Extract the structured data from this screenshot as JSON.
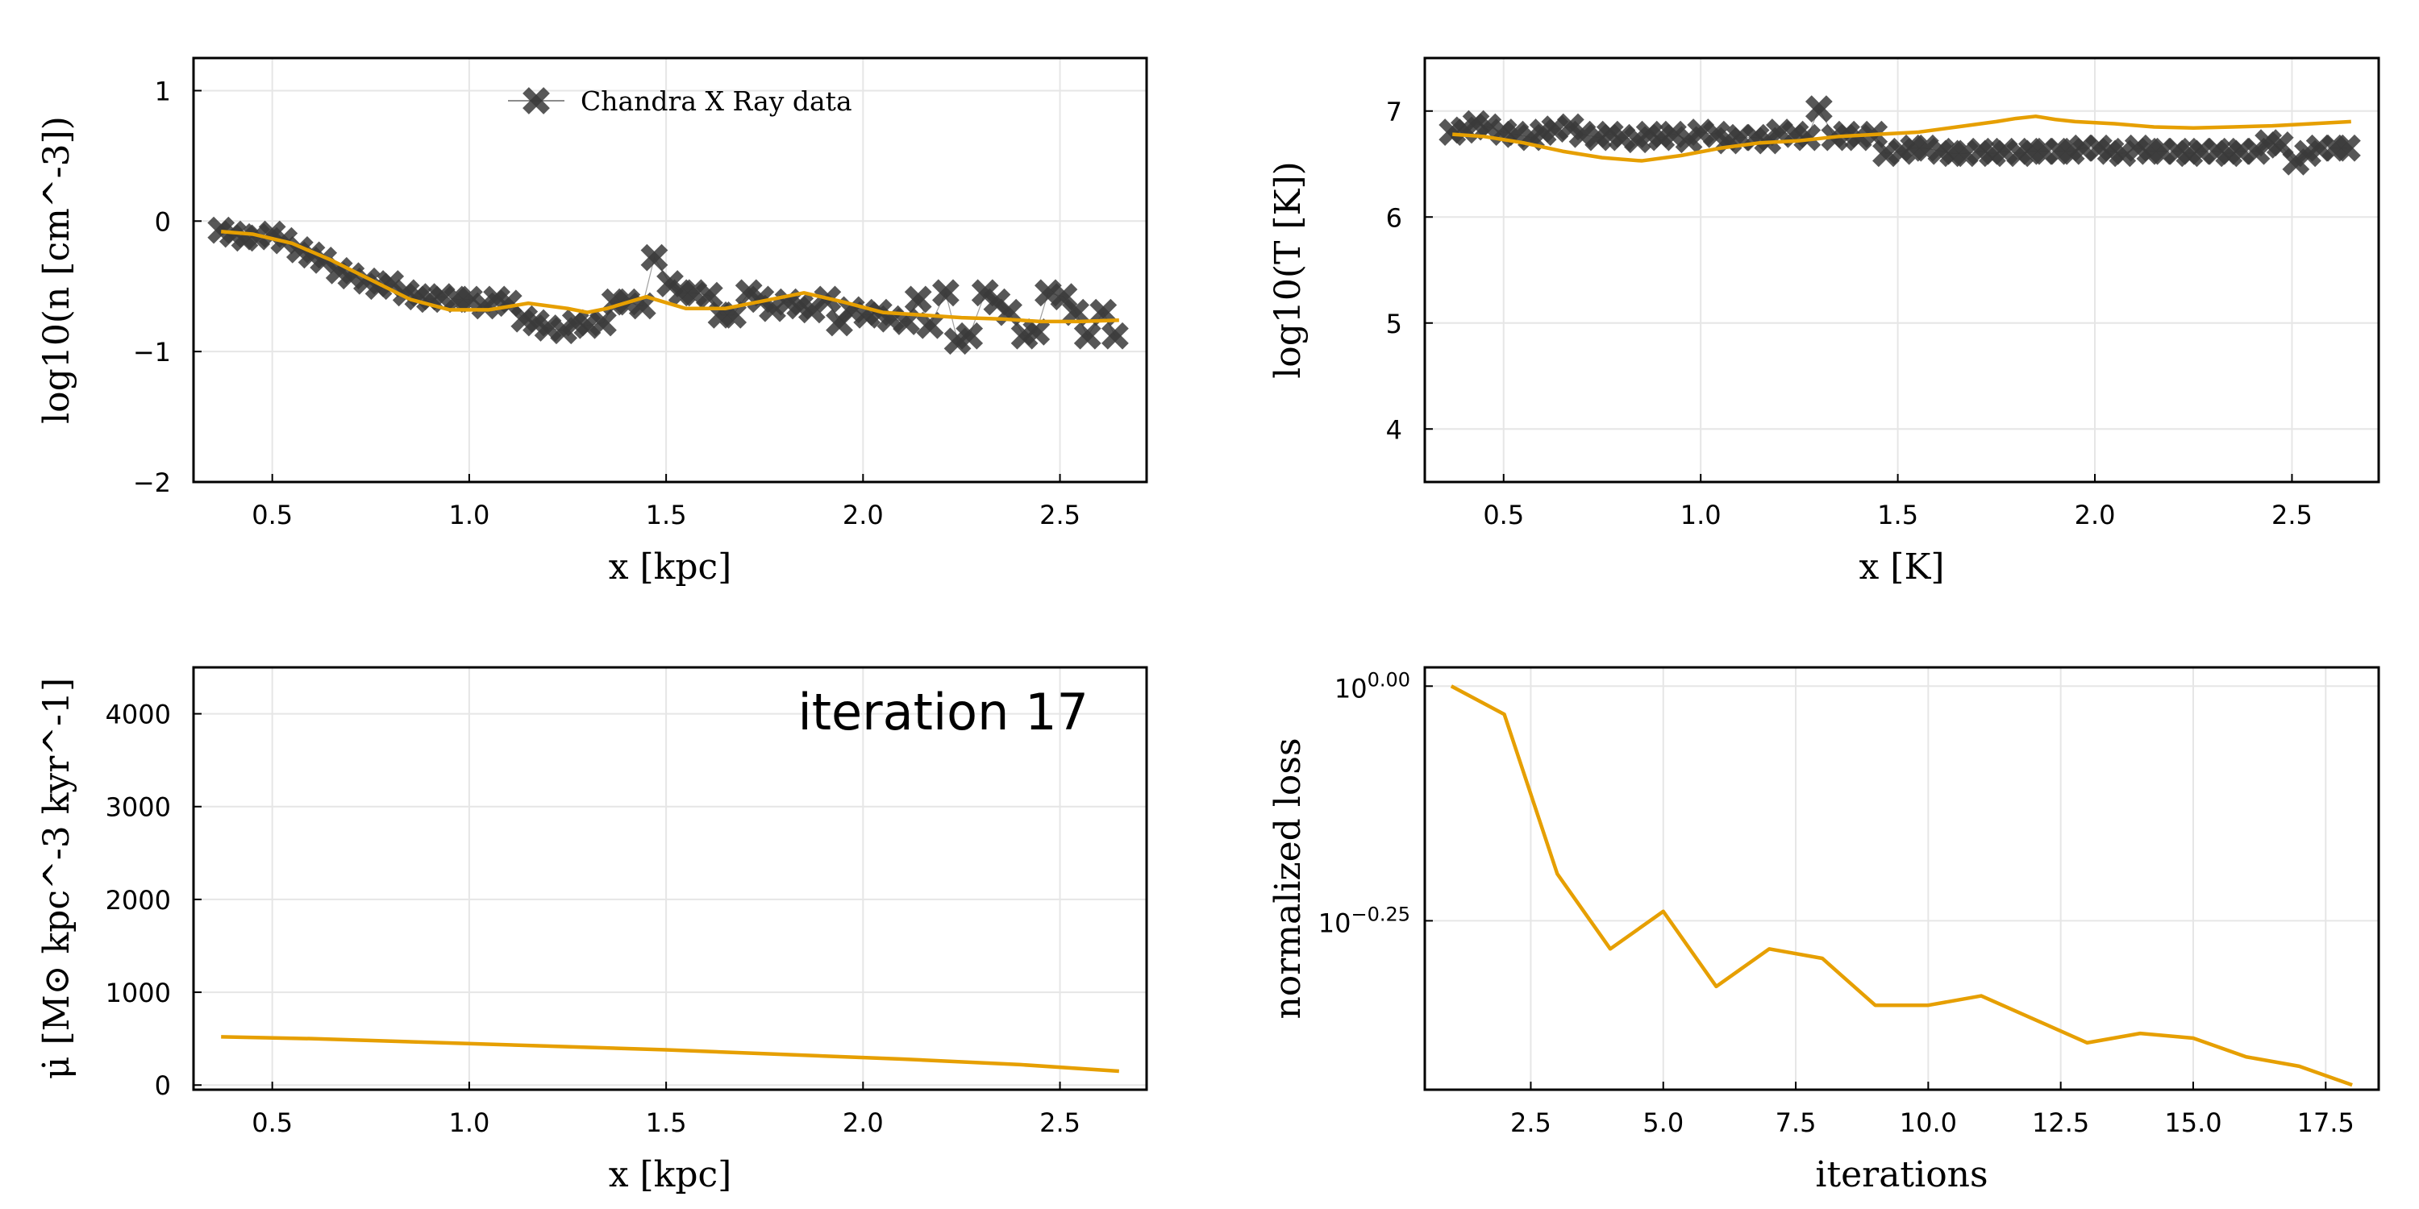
{
  "chart_data": [
    {
      "type": "scatter+line",
      "xlabel": "x [kpc]",
      "ylabel": "log10(n [cm^-3])",
      "xlim": [
        0.3,
        2.72
      ],
      "ylim": [
        -2,
        1.25
      ],
      "xticks": [
        "0.5",
        "1.0",
        "1.5",
        "2.0",
        "2.5"
      ],
      "yticks": [
        "−2",
        "−1",
        "0",
        "1"
      ],
      "grid": true,
      "legend": {
        "placement": "top-center",
        "entries": [
          "Chandra X Ray data"
        ]
      },
      "series": [
        {
          "name": "Chandra X Ray data",
          "style": "x-markers",
          "x": [
            0.37,
            0.4,
            0.43,
            0.46,
            0.5,
            0.53,
            0.57,
            0.6,
            0.63,
            0.67,
            0.7,
            0.74,
            0.77,
            0.8,
            0.84,
            0.87,
            0.9,
            0.93,
            0.97,
            1.0,
            1.04,
            1.07,
            1.1,
            1.14,
            1.17,
            1.2,
            1.24,
            1.27,
            1.3,
            1.34,
            1.37,
            1.4,
            1.44,
            1.47,
            1.51,
            1.54,
            1.57,
            1.61,
            1.64,
            1.67,
            1.71,
            1.74,
            1.77,
            1.81,
            1.84,
            1.87,
            1.91,
            1.94,
            1.97,
            2.01,
            2.04,
            2.07,
            2.11,
            2.14,
            2.17,
            2.21,
            2.24,
            2.27,
            2.31,
            2.34,
            2.37,
            2.41,
            2.44,
            2.47,
            2.51,
            2.54,
            2.57,
            2.61,
            2.64
          ],
          "values": [
            -0.07,
            -0.1,
            -0.13,
            -0.12,
            -0.1,
            -0.15,
            -0.22,
            -0.26,
            -0.3,
            -0.38,
            -0.42,
            -0.46,
            -0.5,
            -0.48,
            -0.55,
            -0.58,
            -0.6,
            -0.58,
            -0.6,
            -0.6,
            -0.65,
            -0.6,
            -0.63,
            -0.75,
            -0.78,
            -0.82,
            -0.84,
            -0.78,
            -0.8,
            -0.78,
            -0.62,
            -0.62,
            -0.65,
            -0.28,
            -0.48,
            -0.55,
            -0.55,
            -0.57,
            -0.72,
            -0.72,
            -0.55,
            -0.6,
            -0.67,
            -0.62,
            -0.65,
            -0.68,
            -0.6,
            -0.78,
            -0.68,
            -0.72,
            -0.7,
            -0.75,
            -0.77,
            -0.6,
            -0.8,
            -0.55,
            -0.92,
            -0.88,
            -0.55,
            -0.62,
            -0.7,
            -0.88,
            -0.85,
            -0.55,
            -0.58,
            -0.7,
            -0.88,
            -0.7,
            -0.88
          ]
        },
        {
          "style": "line",
          "x": [
            0.37,
            0.45,
            0.55,
            0.65,
            0.75,
            0.85,
            0.95,
            1.05,
            1.15,
            1.25,
            1.3,
            1.35,
            1.45,
            1.55,
            1.65,
            1.75,
            1.85,
            1.95,
            2.05,
            2.15,
            2.25,
            2.35,
            2.45,
            2.55,
            2.65
          ],
          "values": [
            -0.08,
            -0.1,
            -0.17,
            -0.3,
            -0.45,
            -0.6,
            -0.68,
            -0.68,
            -0.63,
            -0.67,
            -0.7,
            -0.67,
            -0.58,
            -0.67,
            -0.67,
            -0.61,
            -0.55,
            -0.62,
            -0.7,
            -0.72,
            -0.74,
            -0.75,
            -0.77,
            -0.77,
            -0.76
          ]
        }
      ]
    },
    {
      "type": "scatter+line",
      "xlabel": "x [K]",
      "ylabel": "log10(T [K])",
      "xlim": [
        0.3,
        2.72
      ],
      "ylim": [
        3.5,
        7.5
      ],
      "xticks": [
        "0.5",
        "1.0",
        "1.5",
        "2.0",
        "2.5"
      ],
      "yticks": [
        "4",
        "5",
        "6",
        "7"
      ],
      "grid": true,
      "series": [
        {
          "style": "x-markers",
          "x": [
            0.37,
            0.4,
            0.43,
            0.46,
            0.5,
            0.53,
            0.57,
            0.6,
            0.63,
            0.67,
            0.7,
            0.74,
            0.77,
            0.8,
            0.84,
            0.87,
            0.9,
            0.93,
            0.97,
            1.0,
            1.04,
            1.07,
            1.1,
            1.14,
            1.17,
            1.2,
            1.24,
            1.27,
            1.3,
            1.34,
            1.37,
            1.4,
            1.44,
            1.47,
            1.51,
            1.54,
            1.57,
            1.61,
            1.64,
            1.67,
            1.71,
            1.74,
            1.77,
            1.81,
            1.84,
            1.87,
            1.91,
            1.94,
            1.97,
            2.01,
            2.04,
            2.07,
            2.11,
            2.14,
            2.17,
            2.21,
            2.24,
            2.27,
            2.31,
            2.34,
            2.37,
            2.41,
            2.44,
            2.47,
            2.51,
            2.54,
            2.57,
            2.61,
            2.64
          ],
          "values": [
            6.8,
            6.82,
            6.88,
            6.85,
            6.8,
            6.78,
            6.75,
            6.8,
            6.83,
            6.85,
            6.78,
            6.75,
            6.78,
            6.75,
            6.73,
            6.78,
            6.75,
            6.78,
            6.73,
            6.8,
            6.78,
            6.72,
            6.75,
            6.75,
            6.72,
            6.8,
            6.78,
            6.75,
            7.02,
            6.75,
            6.78,
            6.75,
            6.78,
            6.6,
            6.62,
            6.65,
            6.65,
            6.62,
            6.6,
            6.6,
            6.62,
            6.6,
            6.62,
            6.6,
            6.62,
            6.62,
            6.62,
            6.62,
            6.65,
            6.65,
            6.62,
            6.6,
            6.65,
            6.62,
            6.62,
            6.62,
            6.6,
            6.62,
            6.62,
            6.6,
            6.62,
            6.62,
            6.7,
            6.68,
            6.52,
            6.6,
            6.65,
            6.65,
            6.65
          ]
        },
        {
          "style": "line",
          "x": [
            0.37,
            0.45,
            0.55,
            0.65,
            0.75,
            0.85,
            0.95,
            1.05,
            1.15,
            1.25,
            1.35,
            1.45,
            1.55,
            1.65,
            1.75,
            1.8,
            1.85,
            1.9,
            1.95,
            2.05,
            2.15,
            2.25,
            2.35,
            2.45,
            2.55,
            2.65
          ],
          "values": [
            6.78,
            6.76,
            6.7,
            6.62,
            6.56,
            6.53,
            6.58,
            6.65,
            6.7,
            6.72,
            6.76,
            6.78,
            6.8,
            6.85,
            6.9,
            6.93,
            6.95,
            6.92,
            6.9,
            6.88,
            6.85,
            6.84,
            6.85,
            6.86,
            6.88,
            6.9
          ]
        }
      ]
    },
    {
      "type": "line",
      "xlabel": "x [kpc]",
      "ylabel": "μ̇ [M⊙ kpc^-3 kyr^-1]",
      "xlim": [
        0.3,
        2.72
      ],
      "ylim": [
        -50,
        4500
      ],
      "xticks": [
        "0.5",
        "1.0",
        "1.5",
        "2.0",
        "2.5"
      ],
      "yticks": [
        "0",
        "1000",
        "2000",
        "3000",
        "4000"
      ],
      "grid": true,
      "annotation": "iteration 17",
      "series": [
        {
          "style": "line",
          "x": [
            0.37,
            0.6,
            0.9,
            1.2,
            1.5,
            1.8,
            2.1,
            2.4,
            2.65
          ],
          "values": [
            520,
            500,
            460,
            420,
            380,
            330,
            280,
            220,
            150
          ]
        }
      ]
    },
    {
      "type": "line",
      "xlabel": "iterations",
      "ylabel": "normalized loss",
      "xlim": [
        0.5,
        18.5
      ],
      "ylim": [
        -0.43,
        0.02
      ],
      "yscale": "log10",
      "xticks": [
        "2.5",
        "5.0",
        "7.5",
        "10.0",
        "12.5",
        "15.0",
        "17.5"
      ],
      "yticks": [
        "10^0.00",
        "10^−0.25"
      ],
      "grid": true,
      "series": [
        {
          "style": "line",
          "x": [
            1,
            2,
            3,
            4,
            5,
            6,
            7,
            8,
            9,
            10,
            11,
            12,
            13,
            14,
            15,
            16,
            17,
            18
          ],
          "values": [
            0.0,
            -0.03,
            -0.2,
            -0.28,
            -0.24,
            -0.32,
            -0.28,
            -0.29,
            -0.34,
            -0.34,
            -0.33,
            -0.355,
            -0.38,
            -0.37,
            -0.375,
            -0.395,
            -0.405,
            -0.425
          ]
        }
      ]
    }
  ]
}
